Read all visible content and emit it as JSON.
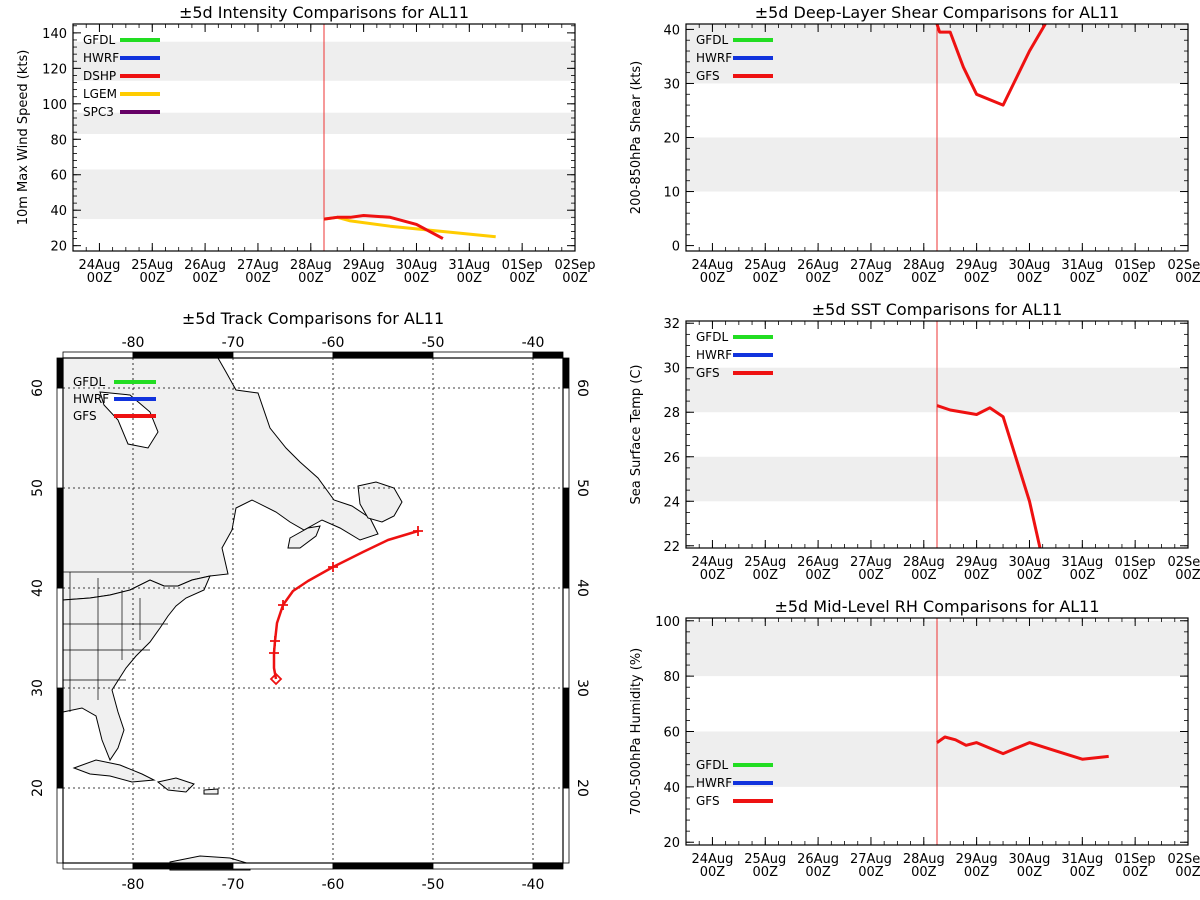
{
  "chart_data": [
    {
      "id": "intensity",
      "type": "line",
      "title": "±5d Intensity Comparisons for AL11",
      "ylabel": "10m Max Wind Speed (kts)",
      "xlabel": "",
      "ylim": [
        17,
        145
      ],
      "yticks": [
        20,
        40,
        60,
        80,
        100,
        120,
        140
      ],
      "bands": [
        [
          35,
          63
        ],
        [
          83,
          95
        ],
        [
          113,
          135
        ]
      ],
      "xlim": [
        0,
        9.5
      ],
      "xtick_labels": [
        [
          "24Aug",
          "00Z"
        ],
        [
          "25Aug",
          "00Z"
        ],
        [
          "26Aug",
          "00Z"
        ],
        [
          "27Aug",
          "00Z"
        ],
        [
          "28Aug",
          "00Z"
        ],
        [
          "29Aug",
          "00Z"
        ],
        [
          "30Aug",
          "00Z"
        ],
        [
          "31Aug",
          "00Z"
        ],
        [
          "01Sep",
          "00Z"
        ],
        [
          "02Sep",
          "00Z"
        ]
      ],
      "init_time": 4.75,
      "legend_position": "top-left",
      "legend": [
        {
          "name": "GFDL",
          "color": "#22dd22"
        },
        {
          "name": "HWRF",
          "color": "#1133dd"
        },
        {
          "name": "DSHP",
          "color": "#ee1111"
        },
        {
          "name": "LGEM",
          "color": "#ffcc00"
        },
        {
          "name": "SPC3",
          "color": "#660066"
        }
      ],
      "series": [
        {
          "name": "LGEM",
          "color": "#ffcc00",
          "x": [
            4.75,
            5.0,
            5.25,
            6.0,
            7.0,
            8.0
          ],
          "y": [
            35,
            36,
            34,
            31,
            28,
            25
          ]
        },
        {
          "name": "DSHP",
          "color": "#ee1111",
          "x": [
            4.75,
            5.0,
            5.25,
            5.5,
            6.0,
            6.5,
            7.0
          ],
          "y": [
            35,
            36,
            36,
            37,
            36,
            32,
            24
          ]
        }
      ]
    },
    {
      "id": "shear",
      "type": "line",
      "title": "±5d Deep-Layer Shear Comparisons for AL11",
      "ylabel": "200-850hPa Shear (kts)",
      "xlabel": "",
      "ylim": [
        -1,
        41
      ],
      "yticks": [
        0,
        10,
        20,
        30,
        40
      ],
      "bands": [
        [
          10,
          20
        ],
        [
          30,
          41
        ]
      ],
      "xlim": [
        0,
        9.5
      ],
      "xtick_labels": [
        [
          "24Aug",
          "00Z"
        ],
        [
          "25Aug",
          "00Z"
        ],
        [
          "26Aug",
          "00Z"
        ],
        [
          "27Aug",
          "00Z"
        ],
        [
          "28Aug",
          "00Z"
        ],
        [
          "29Aug",
          "00Z"
        ],
        [
          "30Aug",
          "00Z"
        ],
        [
          "31Aug",
          "00Z"
        ],
        [
          "01Sep",
          "00Z"
        ],
        [
          "02Sep",
          "00Z"
        ]
      ],
      "init_time": 4.75,
      "legend_position": "top-left",
      "legend": [
        {
          "name": "GFDL",
          "color": "#22dd22"
        },
        {
          "name": "HWRF",
          "color": "#1133dd"
        },
        {
          "name": "GFS",
          "color": "#ee1111"
        }
      ],
      "series": [
        {
          "name": "GFS",
          "color": "#ee1111",
          "x": [
            4.75,
            4.8,
            5.0,
            5.25,
            5.5,
            6.0,
            6.5,
            6.8
          ],
          "y": [
            41,
            39.5,
            39.5,
            33,
            28,
            26,
            36,
            41
          ]
        }
      ]
    },
    {
      "id": "sst",
      "type": "line",
      "title": "±5d SST Comparisons for AL11",
      "ylabel": "Sea Surface Temp (C)",
      "xlabel": "",
      "ylim": [
        21.9,
        32.1
      ],
      "yticks": [
        22,
        24,
        26,
        28,
        30,
        32
      ],
      "bands": [
        [
          24,
          26
        ],
        [
          28,
          30
        ]
      ],
      "xlim": [
        0,
        9.5
      ],
      "xtick_labels": [
        [
          "24Aug",
          "00Z"
        ],
        [
          "25Aug",
          "00Z"
        ],
        [
          "26Aug",
          "00Z"
        ],
        [
          "27Aug",
          "00Z"
        ],
        [
          "28Aug",
          "00Z"
        ],
        [
          "29Aug",
          "00Z"
        ],
        [
          "30Aug",
          "00Z"
        ],
        [
          "31Aug",
          "00Z"
        ],
        [
          "01Sep",
          "00Z"
        ],
        [
          "02Sep",
          "00Z"
        ]
      ],
      "init_time": 4.75,
      "legend_position": "top-left",
      "legend": [
        {
          "name": "GFDL",
          "color": "#22dd22"
        },
        {
          "name": "HWRF",
          "color": "#1133dd"
        },
        {
          "name": "GFS",
          "color": "#ee1111"
        }
      ],
      "series": [
        {
          "name": "GFS",
          "color": "#ee1111",
          "x": [
            4.75,
            5.0,
            5.5,
            5.75,
            6.0,
            6.5,
            6.7
          ],
          "y": [
            28.3,
            28.1,
            27.9,
            28.2,
            27.8,
            24.0,
            21.9
          ]
        }
      ]
    },
    {
      "id": "rh",
      "type": "line",
      "title": "±5d Mid-Level RH Comparisons for AL11",
      "ylabel": "700-500hPa Humidity (%)",
      "xlabel": "",
      "ylim": [
        19,
        101
      ],
      "yticks": [
        20,
        40,
        60,
        80,
        100
      ],
      "bands": [
        [
          40,
          60
        ],
        [
          80,
          100
        ]
      ],
      "xlim": [
        0,
        9.5
      ],
      "xtick_labels": [
        [
          "24Aug",
          "00Z"
        ],
        [
          "25Aug",
          "00Z"
        ],
        [
          "26Aug",
          "00Z"
        ],
        [
          "27Aug",
          "00Z"
        ],
        [
          "28Aug",
          "00Z"
        ],
        [
          "29Aug",
          "00Z"
        ],
        [
          "30Aug",
          "00Z"
        ],
        [
          "31Aug",
          "00Z"
        ],
        [
          "01Sep",
          "00Z"
        ],
        [
          "02Sep",
          "00Z"
        ]
      ],
      "init_time": 4.75,
      "legend_position": "bottom-left",
      "legend": [
        {
          "name": "GFDL",
          "color": "#22dd22"
        },
        {
          "name": "HWRF",
          "color": "#1133dd"
        },
        {
          "name": "GFS",
          "color": "#ee1111"
        }
      ],
      "series": [
        {
          "name": "GFS",
          "color": "#ee1111",
          "x": [
            4.75,
            4.9,
            5.1,
            5.3,
            5.5,
            6.0,
            6.5,
            7.0,
            7.5,
            8.0
          ],
          "y": [
            56,
            58,
            57,
            55,
            56,
            52,
            56,
            53,
            50,
            51
          ]
        }
      ]
    },
    {
      "id": "track",
      "type": "scatter",
      "title": "±5d Track Comparisons for AL11",
      "xlabel": "",
      "ylabel": "",
      "lon_range": [
        -87,
        -37
      ],
      "lat_range": [
        12.5,
        63
      ],
      "lon_ticks": [
        -80,
        -70,
        -60,
        -50,
        -40
      ],
      "lat_ticks": [
        20,
        30,
        40,
        50,
        60
      ],
      "legend_position": "top-left",
      "legend": [
        {
          "name": "GFDL",
          "color": "#22dd22"
        },
        {
          "name": "HWRF",
          "color": "#1133dd"
        },
        {
          "name": "GFS",
          "color": "#ee1111"
        }
      ],
      "tracks": [
        {
          "name": "GFS",
          "color": "#ee1111",
          "lon": [
            -65.7,
            -65.9,
            -65.9,
            -65.8,
            -65.6,
            -65.0,
            -64.0,
            -62.5,
            -60.0,
            -57.0,
            -54.5,
            -51.5
          ],
          "lat": [
            30.9,
            32.0,
            33.5,
            34.7,
            36.5,
            38.3,
            39.7,
            40.7,
            42.1,
            43.6,
            44.8,
            45.7
          ],
          "markers_lon": [
            -65.9,
            -65.8,
            -65.0,
            -60.0,
            -51.5
          ],
          "markers_lat": [
            33.5,
            34.7,
            38.3,
            42.1,
            45.7
          ],
          "start_lon": -65.7,
          "start_lat": 30.9
        }
      ]
    }
  ]
}
